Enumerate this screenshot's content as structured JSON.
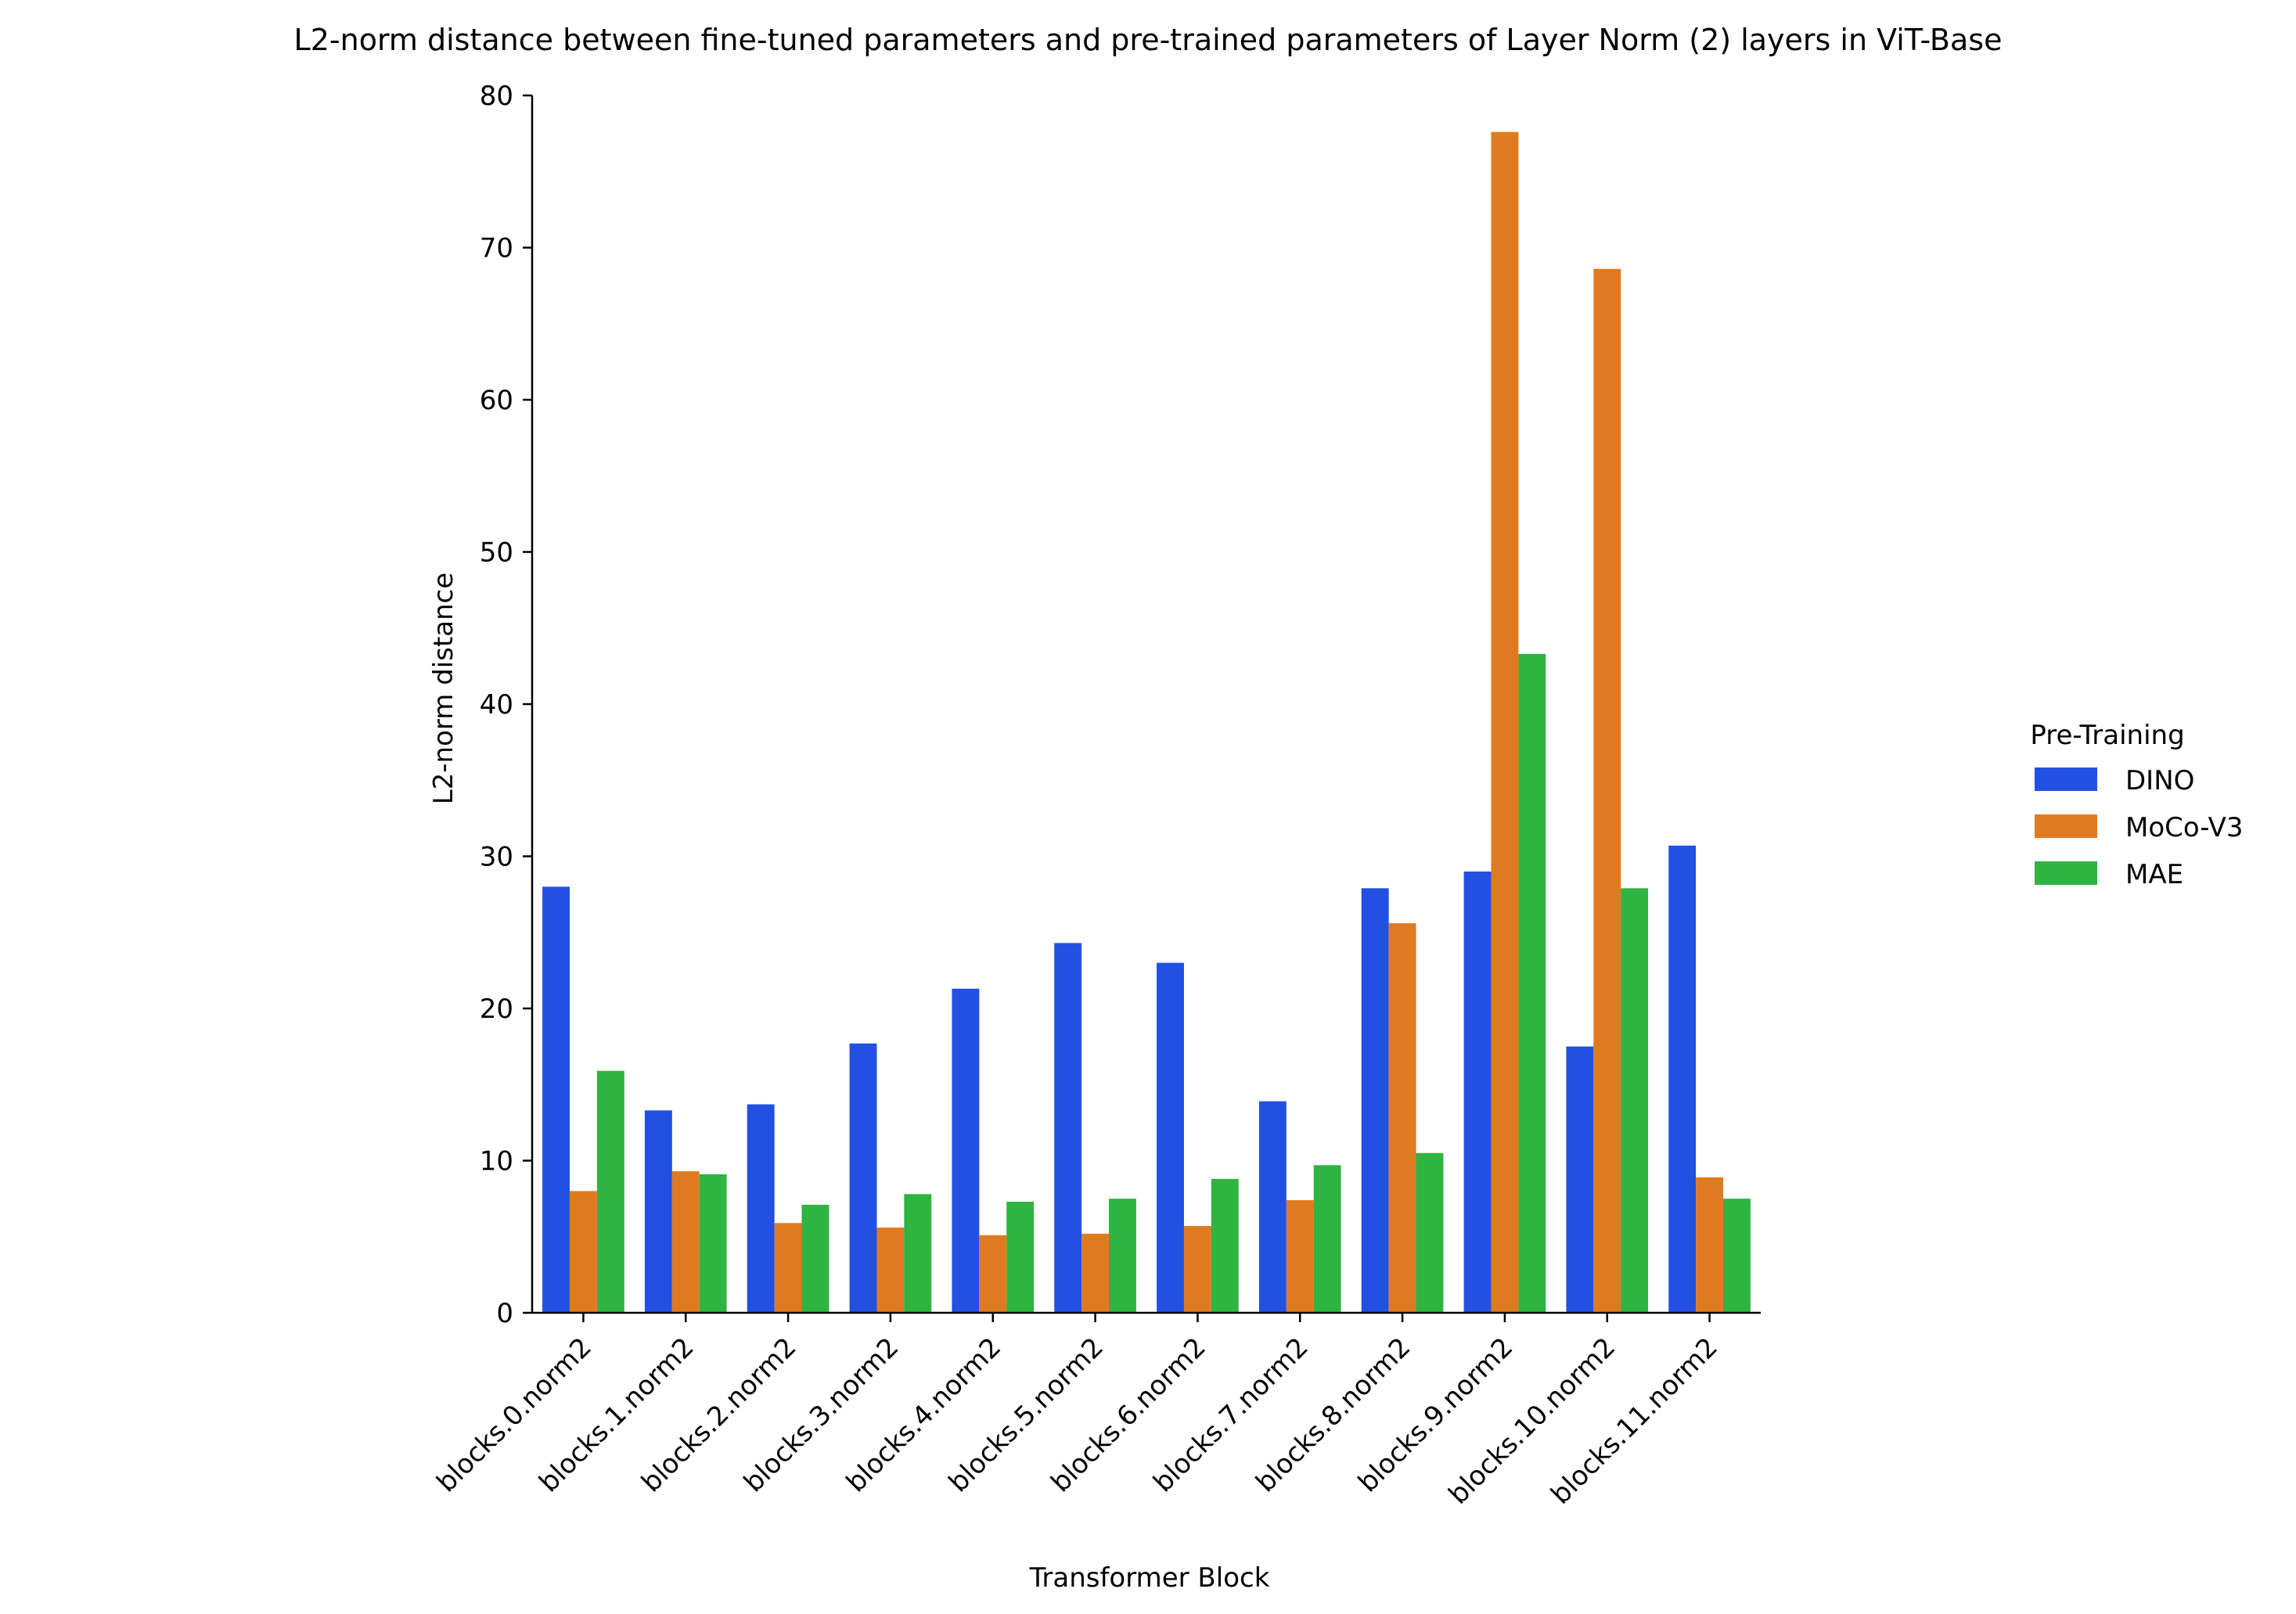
{
  "chart_data": {
    "type": "bar",
    "title": "L2-norm distance between fine-tuned parameters and pre-trained parameters of Layer Norm (2) layers in ViT-Base",
    "xlabel": "Transformer Block",
    "ylabel": "L2-norm distance",
    "ylim": [
      0,
      80
    ],
    "yticks": [
      0,
      10,
      20,
      30,
      40,
      50,
      60,
      70,
      80
    ],
    "grid": false,
    "legend": {
      "title": "Pre-Training",
      "placement": "right"
    },
    "categories": [
      "blocks.0.norm2",
      "blocks.1.norm2",
      "blocks.2.norm2",
      "blocks.3.norm2",
      "blocks.4.norm2",
      "blocks.5.norm2",
      "blocks.6.norm2",
      "blocks.7.norm2",
      "blocks.8.norm2",
      "blocks.9.norm2",
      "blocks.10.norm2",
      "blocks.11.norm2"
    ],
    "series": [
      {
        "name": "DINO",
        "color": "#2250e1",
        "values": [
          28.0,
          13.3,
          13.7,
          17.7,
          21.3,
          24.3,
          23.0,
          13.9,
          27.9,
          29.0,
          17.5,
          30.7
        ]
      },
      {
        "name": "MoCo-V3",
        "color": "#e07a20",
        "values": [
          8.0,
          9.3,
          5.9,
          5.6,
          5.1,
          5.2,
          5.7,
          7.4,
          25.6,
          77.6,
          68.6,
          8.9
        ]
      },
      {
        "name": "MAE",
        "color": "#2fb341",
        "values": [
          15.9,
          9.1,
          7.1,
          7.8,
          7.3,
          7.5,
          8.8,
          9.7,
          10.5,
          43.3,
          27.9,
          7.5
        ]
      }
    ]
  }
}
